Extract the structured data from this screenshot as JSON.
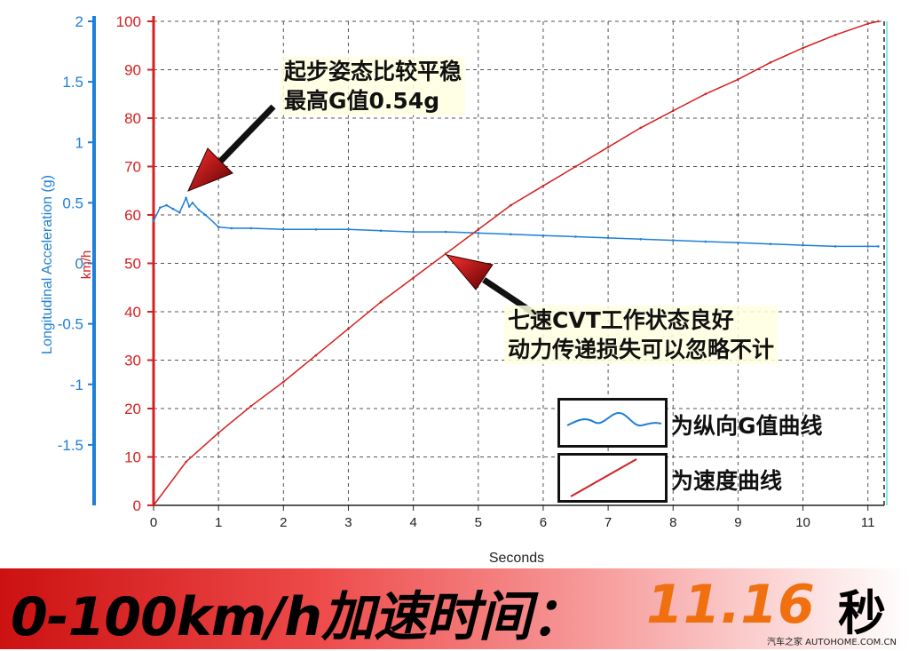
{
  "chart_data": {
    "type": "line",
    "xlabel": "Seconds",
    "y_left_label": "Longitudinal Acceleration (g)",
    "y_right_label": "km/h",
    "xlim": [
      0,
      11.25
    ],
    "x_ticks": [
      0,
      1,
      2,
      3,
      4,
      5,
      6,
      7,
      8,
      9,
      10,
      11
    ],
    "y_g_lim": [
      -2,
      2
    ],
    "y_g_ticks": [
      "2",
      "1.5",
      "1",
      "0.5",
      "0",
      "-0.5",
      "-1",
      "-1.5"
    ],
    "y_speed_lim": [
      0,
      100
    ],
    "y_speed_ticks": [
      "100",
      "90",
      "80",
      "70",
      "60",
      "50",
      "40",
      "30",
      "20",
      "10",
      "0"
    ],
    "grid": true,
    "series": [
      {
        "name": "为纵向G值曲线",
        "axis": "g",
        "color": "#1e7fd6",
        "x": [
          0,
          0.1,
          0.2,
          0.3,
          0.4,
          0.5,
          0.55,
          0.6,
          0.7,
          0.8,
          1,
          1.2,
          1.5,
          2,
          2.5,
          3,
          3.5,
          4,
          4.5,
          5,
          5.5,
          6,
          6.5,
          7,
          7.5,
          8,
          8.5,
          9,
          9.5,
          10,
          10.5,
          11,
          11.16
        ],
        "values": [
          0.35,
          0.46,
          0.48,
          0.45,
          0.42,
          0.54,
          0.47,
          0.5,
          0.44,
          0.4,
          0.3,
          0.29,
          0.29,
          0.28,
          0.28,
          0.28,
          0.27,
          0.26,
          0.26,
          0.25,
          0.24,
          0.23,
          0.22,
          0.21,
          0.2,
          0.19,
          0.18,
          0.17,
          0.16,
          0.15,
          0.14,
          0.14,
          0.14
        ]
      },
      {
        "name": "为速度曲线",
        "axis": "speed",
        "color": "#d42020",
        "x": [
          0,
          0.5,
          1,
          1.5,
          2,
          2.5,
          3,
          3.5,
          4,
          4.5,
          5,
          5.5,
          6,
          6.5,
          7,
          7.5,
          8,
          8.5,
          9,
          9.5,
          10,
          10.5,
          11,
          11.16
        ],
        "values": [
          0,
          9,
          15,
          20.5,
          25.5,
          31,
          36.5,
          42,
          47,
          52,
          57,
          62,
          66,
          70,
          74,
          78,
          81.5,
          85,
          88,
          91.5,
          94.5,
          97.2,
          99.5,
          100
        ]
      }
    ]
  },
  "annotations": {
    "top_line1": "起步姿态比较平稳",
    "top_line2": "最高G值0.54g",
    "mid_line1": "七速CVT工作状态良好",
    "mid_line2": "动力传递损失可以忽略不计"
  },
  "legend": {
    "g_label": "为纵向G值曲线",
    "speed_label": "为速度曲线"
  },
  "banner": {
    "text": "0-100km/h加速时间：",
    "value": "11.16",
    "unit": "秒"
  },
  "watermark": "汽车之家 AUTOHOME.COM.CN",
  "colors": {
    "g_axis": "#1e7fd6",
    "speed_axis": "#d42020",
    "banner_value": "#f07010"
  }
}
